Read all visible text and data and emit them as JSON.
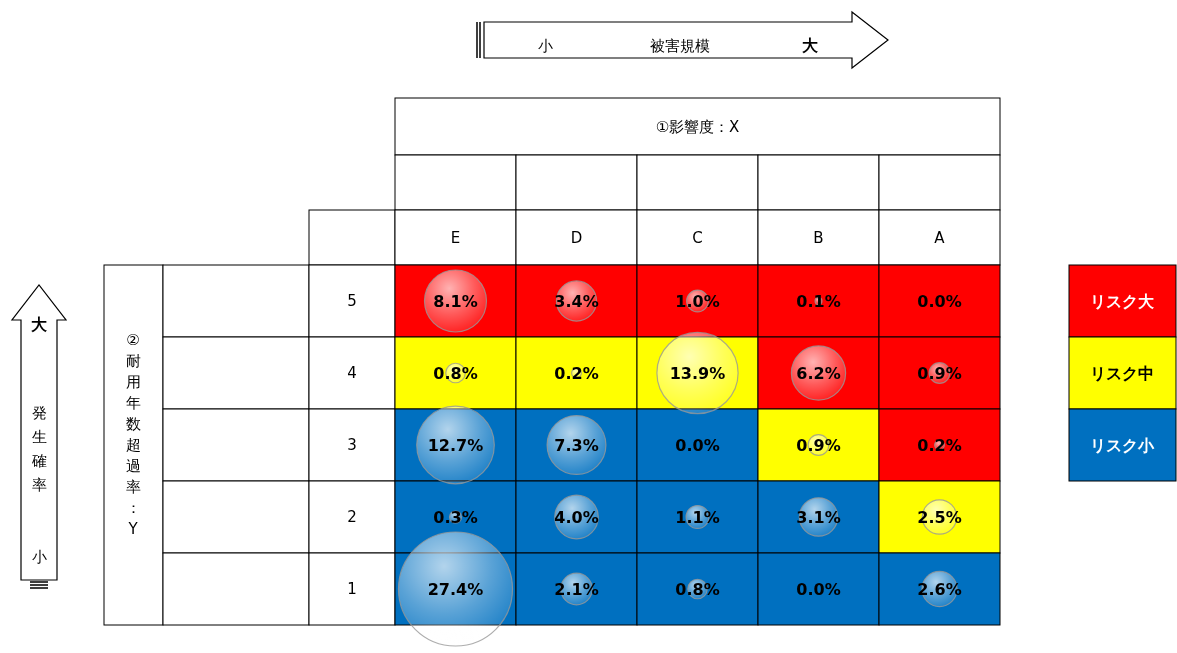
{
  "chart_data": {
    "type": "heatmap",
    "ylabel": "②耐用年数超過率：Y",
    "categories": [
      "E",
      "D",
      "C",
      "B",
      "A"
    ],
    "y_categories": [
      "5",
      "4",
      "3",
      "2",
      "1"
    ],
    "cells": [
      [
        8.1,
        3.4,
        1.0,
        0.1,
        0.0
      ],
      [
        0.8,
        0.2,
        13.9,
        6.2,
        0.9
      ],
      [
        12.7,
        7.3,
        0.0,
        0.9,
        0.2
      ],
      [
        0.3,
        4.0,
        1.1,
        3.1,
        2.5
      ],
      [
        27.4,
        2.1,
        0.8,
        0.0,
        2.6
      ]
    ],
    "cell_labels": [
      [
        "8.1%",
        "3.4%",
        "1.0%",
        "0.1%",
        "0.0%"
      ],
      [
        "0.8%",
        "0.2%",
        "13.9%",
        "6.2%",
        "0.9%"
      ],
      [
        "12.7%",
        "7.3%",
        "0.0%",
        "0.9%",
        "0.2%"
      ],
      [
        "0.3%",
        "4.0%",
        "1.1%",
        "3.1%",
        "2.5%"
      ],
      [
        "27.4%",
        "2.1%",
        "0.8%",
        "0.0%",
        "2.6%"
      ]
    ],
    "colors": [
      [
        "#ff0000",
        "#ff0000",
        "#ff0000",
        "#ff0000",
        "#ff0000"
      ],
      [
        "#ffff00",
        "#ffff00",
        "#ffff00",
        "#ff0000",
        "#ff0000"
      ],
      [
        "#0070c0",
        "#0070c0",
        "#0070c0",
        "#ffff00",
        "#ff0000"
      ],
      [
        "#0070c0",
        "#0070c0",
        "#0070c0",
        "#0070c0",
        "#ffff00"
      ],
      [
        "#0070c0",
        "#0070c0",
        "#0070c0",
        "#0070c0",
        "#0070c0"
      ]
    ],
    "annotations": [
      "小",
      "被害規模",
      "大",
      "大",
      "発生確率",
      "小",
      "リスク大",
      "リスク中",
      "リスク小",
      "①影響度：X"
    ]
  }
}
